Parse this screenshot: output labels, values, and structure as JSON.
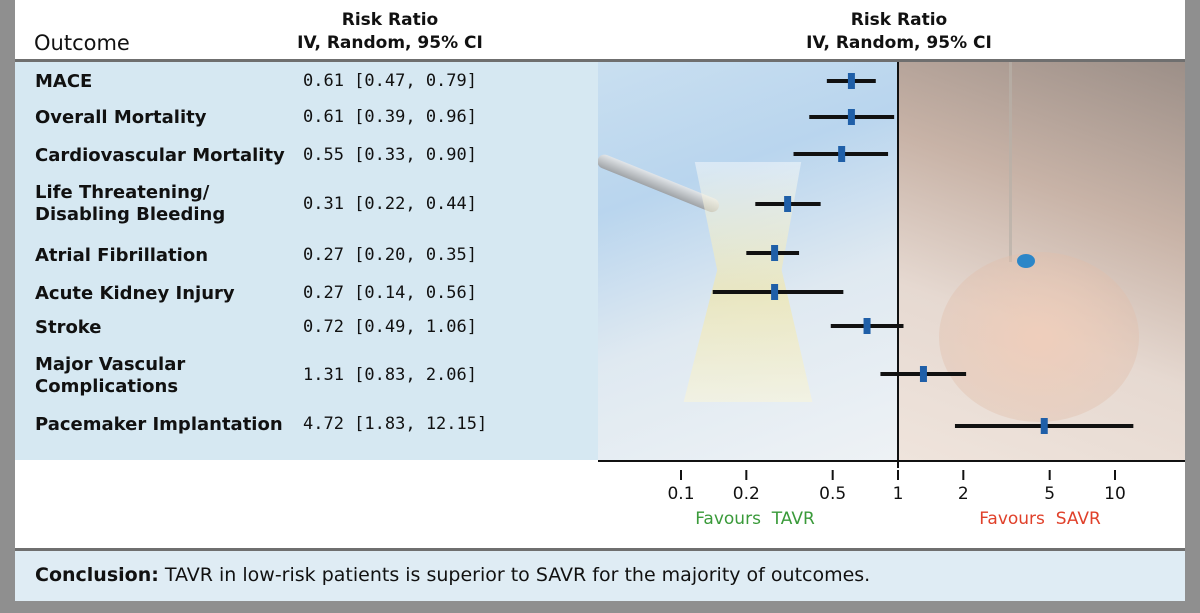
{
  "header": {
    "outcome": "Outcome",
    "col_title": "Risk Ratio",
    "col_sub": "IV, Random, 95% CI",
    "plot_title": "Risk Ratio",
    "plot_sub": "IV, Random, 95% CI"
  },
  "rows": [
    {
      "label": "MACE",
      "ci": "0.61 [0.47, 0.79]"
    },
    {
      "label": "Overall Mortality",
      "ci": "0.61 [0.39, 0.96]"
    },
    {
      "label": "Cardiovascular Mortality",
      "ci": "0.55 [0.33, 0.90]"
    },
    {
      "label": "Life Threatening/\nDisabling Bleeding",
      "ci": "0.31 [0.22, 0.44]"
    },
    {
      "label": "Atrial Fibrillation",
      "ci": "0.27 [0.20, 0.35]"
    },
    {
      "label": "Acute Kidney Injury",
      "ci": "0.27 [0.14, 0.56]"
    },
    {
      "label": "Stroke",
      "ci": "0.72 [0.49, 1.06]"
    },
    {
      "label": "Major Vascular\nComplications",
      "ci": "1.31 [0.83, 2.06]"
    },
    {
      "label": "Pacemaker Implantation",
      "ci": "4.72 [1.83, 12.15]"
    }
  ],
  "chart_data": {
    "type": "forest",
    "title": "Risk Ratio",
    "subtitle": "IV, Random, 95% CI",
    "x_scale": "log",
    "xlim": [
      0.05,
      20
    ],
    "reference_line": 1,
    "ticks": [
      0.1,
      0.2,
      0.5,
      1,
      2,
      5,
      10
    ],
    "tick_labels": [
      "0.1",
      "0.2",
      "0.5",
      "1",
      "2",
      "5",
      "10"
    ],
    "favours_left": "Favours  TAVR",
    "favours_right": "Favours  SAVR",
    "favours_left_color": "#3a9a3a",
    "favours_right_color": "#e0402a",
    "marker_color": "#1f5fa8",
    "categories": [
      "MACE",
      "Overall Mortality",
      "Cardiovascular Mortality",
      "Life Threatening/ Disabling Bleeding",
      "Atrial Fibrillation",
      "Acute Kidney Injury",
      "Stroke",
      "Major Vascular Complications",
      "Pacemaker Implantation"
    ],
    "estimates": [
      0.61,
      0.61,
      0.55,
      0.31,
      0.27,
      0.27,
      0.72,
      1.31,
      4.72
    ],
    "lower": [
      0.47,
      0.39,
      0.33,
      0.22,
      0.2,
      0.14,
      0.49,
      0.83,
      1.83
    ],
    "upper": [
      0.79,
      0.96,
      0.9,
      0.44,
      0.35,
      0.56,
      1.06,
      2.06,
      12.15
    ]
  },
  "conclusion": {
    "label": "Conclusion:",
    "text": " TAVR in low-risk patients is superior to SAVR for the majority of outcomes."
  }
}
